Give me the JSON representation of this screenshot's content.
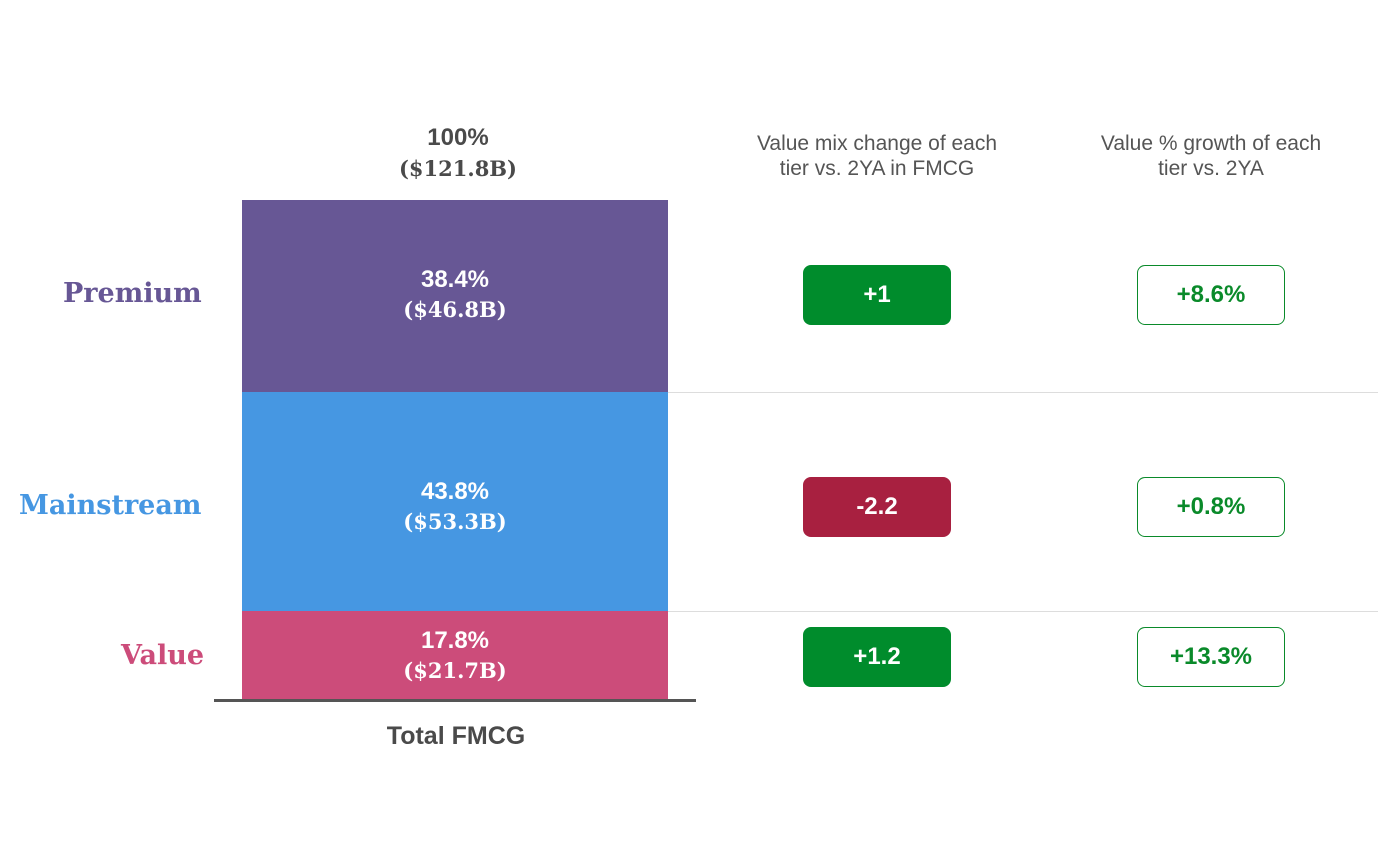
{
  "total": {
    "pct": "100%",
    "value": "($121.8B)"
  },
  "headers": {
    "mix_change": [
      "Value mix change of each",
      "tier vs. 2YA in FMCG"
    ],
    "growth": [
      "Value % growth of each",
      "tier vs. 2YA"
    ]
  },
  "bar_label": "Total FMCG",
  "colors": {
    "premium": "#675795",
    "mainstream": "#4697e2",
    "value": "#cc4c7a",
    "positive": "#008c2c",
    "negative": "#a82040"
  },
  "tiers": [
    {
      "name": "Premium",
      "share_label": "38.4%",
      "value_label": "($46.8B)",
      "mix_change": "+1",
      "growth": "+8.6%"
    },
    {
      "name": "Mainstream",
      "share_label": "43.8%",
      "value_label": "($53.3B)",
      "mix_change": "-2.2",
      "growth": "+0.8%"
    },
    {
      "name": "Value",
      "share_label": "17.8%",
      "value_label": "($21.7B)",
      "mix_change": "+1.2",
      "growth": "+13.3%"
    }
  ],
  "chart_data": {
    "type": "bar",
    "categories": [
      "Total FMCG"
    ],
    "series": [
      {
        "name": "Premium",
        "values": [
          38.4
        ],
        "dollars_b": 46.8
      },
      {
        "name": "Mainstream",
        "values": [
          43.8
        ],
        "dollars_b": 53.3
      },
      {
        "name": "Value",
        "values": [
          17.8
        ],
        "dollars_b": 21.7
      }
    ],
    "total": 100,
    "total_dollars_b": 121.8,
    "stacked": true,
    "mix_change_vs_2ya": [
      1,
      -2.2,
      1.2
    ],
    "value_growth_pct_vs_2ya": [
      8.6,
      0.8,
      13.3
    ]
  }
}
